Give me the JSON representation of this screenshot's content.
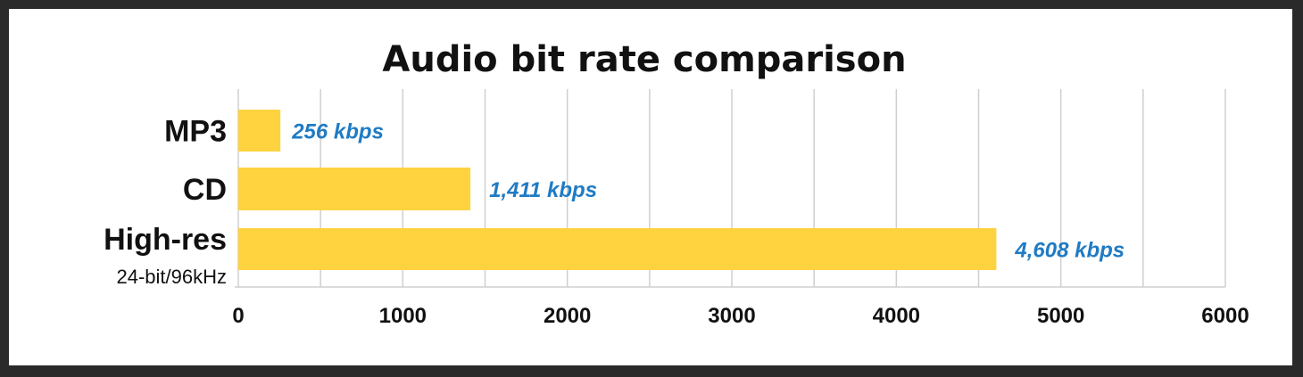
{
  "chart_data": {
    "type": "bar",
    "orientation": "horizontal",
    "title": "Audio bit rate comparison",
    "categories": [
      "MP3",
      "CD",
      "High-res"
    ],
    "category_sublabels": [
      "",
      "",
      "24-bit/96kHz"
    ],
    "values": [
      256,
      1411,
      4608
    ],
    "value_labels": [
      "256 kbps",
      "1,411 kbps",
      "4,608 kbps"
    ],
    "xlim": [
      0,
      6000
    ],
    "xticks": [
      0,
      1000,
      2000,
      3000,
      4000,
      5000,
      6000
    ],
    "xlabel": "",
    "ylabel": "",
    "grid": true,
    "minor_grid": true,
    "colors": {
      "bar": "#FFD23F",
      "value_label": "#1f7bc4",
      "grid": "#cfcfcf",
      "text": "#111111"
    }
  }
}
